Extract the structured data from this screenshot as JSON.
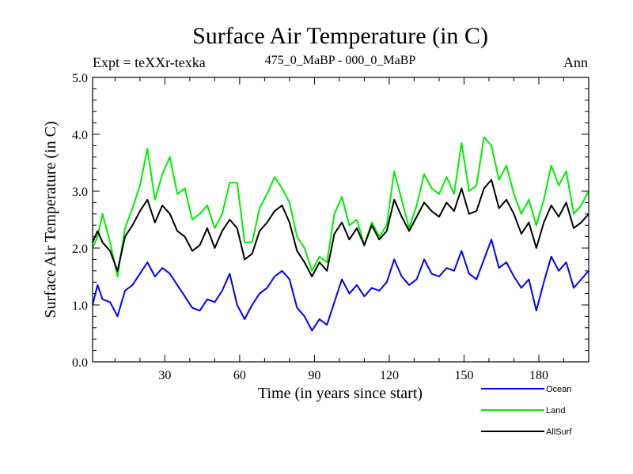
{
  "chart_data": {
    "type": "line",
    "title": "Surface Air Temperature (in C)",
    "subtitle_left": "Expt = teXXr-texka",
    "subtitle_center": "475_0_MaBP - 000_0_MaBP",
    "subtitle_right": "Ann",
    "xlabel": "Time (in years since start)",
    "ylabel": "Surface Air Temperature (in C)",
    "xlim": [
      1,
      200
    ],
    "ylim": [
      0.0,
      5.0
    ],
    "x_major_ticks": [
      30,
      60,
      90,
      120,
      150,
      180
    ],
    "x_tick_labels": [
      "30",
      "60",
      "90",
      "120",
      "150",
      "180"
    ],
    "y_major_ticks": [
      0.0,
      1.0,
      2.0,
      3.0,
      4.0,
      5.0
    ],
    "y_tick_labels": [
      "0.0",
      "1.0",
      "2.0",
      "3.0",
      "4.0",
      "5.0"
    ],
    "grid": false,
    "legend_position": "bottom-right",
    "series": [
      {
        "name": "Ocean",
        "color": "#0000ff",
        "x": [
          1,
          3,
          5,
          8,
          11,
          14,
          17,
          20,
          23,
          26,
          29,
          32,
          35,
          38,
          41,
          44,
          47,
          50,
          53,
          56,
          59,
          62,
          65,
          68,
          71,
          74,
          77,
          80,
          83,
          86,
          89,
          92,
          95,
          98,
          101,
          104,
          107,
          110,
          113,
          116,
          119,
          122,
          125,
          128,
          131,
          134,
          137,
          140,
          143,
          146,
          149,
          152,
          155,
          158,
          161,
          164,
          167,
          170,
          173,
          176,
          179,
          182,
          185,
          188,
          191,
          194,
          197,
          200
        ],
        "values": [
          1.0,
          1.35,
          1.1,
          1.05,
          0.8,
          1.25,
          1.35,
          1.55,
          1.75,
          1.5,
          1.65,
          1.55,
          1.35,
          1.15,
          0.95,
          0.9,
          1.1,
          1.05,
          1.25,
          1.55,
          1.0,
          0.75,
          1.0,
          1.2,
          1.3,
          1.5,
          1.6,
          1.45,
          0.95,
          0.8,
          0.55,
          0.75,
          0.65,
          1.05,
          1.45,
          1.2,
          1.35,
          1.15,
          1.3,
          1.25,
          1.4,
          1.8,
          1.5,
          1.35,
          1.45,
          1.8,
          1.55,
          1.5,
          1.65,
          1.6,
          1.95,
          1.55,
          1.45,
          1.8,
          2.15,
          1.65,
          1.75,
          1.5,
          1.3,
          1.45,
          0.9,
          1.4,
          1.85,
          1.6,
          1.75,
          1.3,
          1.45,
          1.6
        ]
      },
      {
        "name": "Land",
        "color": "#00ee00",
        "x": [
          1,
          3,
          5,
          8,
          11,
          14,
          17,
          20,
          23,
          26,
          29,
          32,
          35,
          38,
          41,
          44,
          47,
          50,
          53,
          56,
          59,
          62,
          65,
          68,
          71,
          74,
          77,
          80,
          83,
          86,
          89,
          92,
          95,
          98,
          101,
          104,
          107,
          110,
          113,
          116,
          119,
          122,
          125,
          128,
          131,
          134,
          137,
          140,
          143,
          146,
          149,
          152,
          155,
          158,
          161,
          164,
          167,
          170,
          173,
          176,
          179,
          182,
          185,
          188,
          191,
          194,
          197,
          200
        ],
        "values": [
          2.0,
          2.2,
          2.6,
          2.1,
          1.5,
          2.35,
          2.7,
          3.1,
          3.75,
          2.85,
          3.3,
          3.6,
          2.95,
          3.05,
          2.5,
          2.6,
          2.75,
          2.35,
          2.6,
          3.15,
          3.15,
          2.1,
          2.1,
          2.7,
          2.95,
          3.25,
          3.05,
          2.8,
          2.2,
          2.0,
          1.6,
          1.85,
          1.75,
          2.6,
          2.9,
          2.4,
          2.5,
          2.05,
          2.45,
          2.2,
          2.4,
          3.35,
          2.85,
          2.35,
          2.75,
          3.3,
          3.05,
          2.95,
          3.25,
          2.95,
          3.85,
          3.0,
          3.1,
          3.95,
          3.8,
          3.2,
          3.45,
          2.95,
          2.6,
          2.85,
          2.4,
          2.85,
          3.45,
          3.1,
          3.35,
          2.6,
          2.75,
          3.0
        ]
      },
      {
        "name": "AllSurf",
        "color": "#000000",
        "x": [
          1,
          3,
          5,
          8,
          11,
          14,
          17,
          20,
          23,
          26,
          29,
          32,
          35,
          38,
          41,
          44,
          47,
          50,
          53,
          56,
          59,
          62,
          65,
          68,
          71,
          74,
          77,
          80,
          83,
          86,
          89,
          92,
          95,
          98,
          101,
          104,
          107,
          110,
          113,
          116,
          119,
          122,
          125,
          128,
          131,
          134,
          137,
          140,
          143,
          146,
          149,
          152,
          155,
          158,
          161,
          164,
          167,
          170,
          173,
          176,
          179,
          182,
          185,
          188,
          191,
          194,
          197,
          200
        ],
        "values": [
          2.1,
          2.3,
          2.1,
          1.95,
          1.6,
          2.2,
          2.4,
          2.65,
          2.85,
          2.45,
          2.75,
          2.6,
          2.3,
          2.2,
          1.95,
          2.05,
          2.35,
          2.0,
          2.3,
          2.5,
          2.35,
          1.8,
          1.9,
          2.3,
          2.45,
          2.65,
          2.75,
          2.45,
          1.95,
          1.75,
          1.5,
          1.75,
          1.6,
          2.25,
          2.45,
          2.15,
          2.35,
          2.05,
          2.4,
          2.15,
          2.3,
          2.85,
          2.55,
          2.3,
          2.55,
          2.8,
          2.65,
          2.55,
          2.8,
          2.65,
          3.05,
          2.6,
          2.65,
          3.05,
          3.2,
          2.7,
          2.85,
          2.6,
          2.25,
          2.45,
          2.0,
          2.45,
          2.75,
          2.55,
          2.8,
          2.35,
          2.45,
          2.6
        ]
      }
    ]
  }
}
